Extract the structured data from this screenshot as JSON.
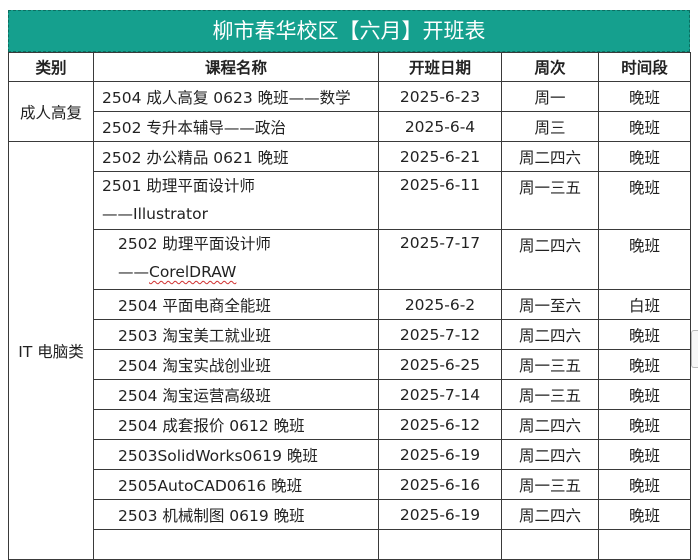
{
  "title": "柳市春华校区【六月】开班表",
  "headers": [
    "类别",
    "课程名称",
    "开班日期",
    "周次",
    "时间段"
  ],
  "categories": {
    "adult": "成人高复",
    "it": "IT 电脑类"
  },
  "rows": [
    {
      "course": "2504 成人高复 0623 晚班——数学",
      "date": "2025-6-23",
      "week": "周一",
      "time": "晚班"
    },
    {
      "course": "2502 专升本辅导——政治",
      "date": "2025-6-4",
      "week": "周三",
      "time": "晚班"
    },
    {
      "course": "2502 办公精品 0621 晚班",
      "date": "2025-6-21",
      "week": "周二四六",
      "time": "晚班"
    },
    {
      "course_line1": "2501 助理平面设计师",
      "course_line2": "——Illustrator",
      "date": "2025-6-11",
      "week": "周一三五",
      "time": "晚班"
    },
    {
      "course_line1": "2502 助理平面设计师",
      "course_line2_prefix": "——",
      "course_line2_word": "CorelDRAW",
      "date": "2025-7-17",
      "week": "周二四六",
      "time": "晚班"
    },
    {
      "course": "2504 平面电商全能班",
      "date": "2025-6-2",
      "week": "周一至六",
      "time": "白班"
    },
    {
      "course": "2503 淘宝美工就业班",
      "date": "2025-7-12",
      "week": "周二四六",
      "time": "晚班"
    },
    {
      "course": "2504 淘宝实战创业班",
      "date": "2025-6-25",
      "week": "周一三五",
      "time": "晚班"
    },
    {
      "course": "2504 淘宝运营高级班",
      "date": "2025-7-14",
      "week": "周一三五",
      "time": "晚班"
    },
    {
      "course": "2504 成套报价 0612 晚班",
      "date": "2025-6-12",
      "week": "周二四六",
      "time": "晚班"
    },
    {
      "course": "2503SolidWorks0619 晚班",
      "date": "2025-6-19",
      "week": "周二四六",
      "time": "晚班"
    },
    {
      "course": "2505AutoCAD0616 晚班",
      "date": "2025-6-16",
      "week": "周一三五",
      "time": "晚班"
    },
    {
      "course": "2503 机械制图 0619 晚班",
      "date": "2025-6-19",
      "week": "周二四六",
      "time": "晚班"
    }
  ]
}
